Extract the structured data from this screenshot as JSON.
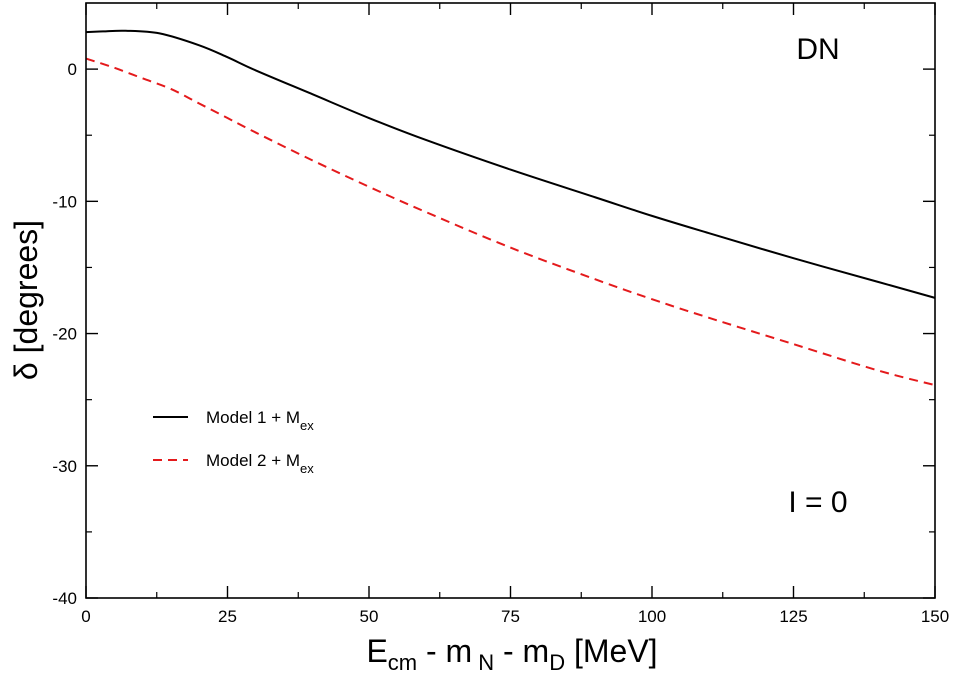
{
  "chart_data": {
    "type": "line",
    "xlim": [
      0,
      150
    ],
    "ylim": [
      -40,
      5
    ],
    "x_ticks": [
      0,
      25,
      50,
      75,
      100,
      125,
      150
    ],
    "y_ticks": [
      0,
      -10,
      -20,
      -30,
      -40
    ],
    "x_tick_labels": [
      "0",
      "25",
      "50",
      "75",
      "100",
      "125",
      "150"
    ],
    "y_tick_labels": [
      "0",
      "-10",
      "-20",
      "-30",
      "-40"
    ],
    "xlabel": {
      "main": "E",
      "sub1": "cm",
      "mid": " - m",
      "sub2": "N",
      "mid2": " - m",
      "sub3": "D",
      "tail": " [MeV]"
    },
    "ylabel": "δ [degrees]",
    "annotations": {
      "top_right": "DN",
      "bottom_right": "I = 0"
    },
    "legend_position": "center-left",
    "grid": false,
    "series": [
      {
        "name": "Model 1 + M",
        "name_sub": "ex",
        "color": "#000000",
        "dash": "solid",
        "points": [
          [
            0,
            2.8
          ],
          [
            3,
            2.85
          ],
          [
            7,
            2.9
          ],
          [
            13,
            2.7
          ],
          [
            20,
            1.8
          ],
          [
            25,
            0.9
          ],
          [
            30,
            -0.1
          ],
          [
            40,
            -1.9
          ],
          [
            50,
            -3.7
          ],
          [
            60,
            -5.35
          ],
          [
            75,
            -7.6
          ],
          [
            90,
            -9.7
          ],
          [
            100,
            -11.1
          ],
          [
            110,
            -12.4
          ],
          [
            125,
            -14.3
          ],
          [
            140,
            -16.1
          ],
          [
            150,
            -17.3
          ]
        ]
      },
      {
        "name": "Model 2 + M",
        "name_sub": "ex",
        "color": "#e41a1c",
        "dash": "dashed",
        "points": [
          [
            0,
            0.8
          ],
          [
            5,
            0.1
          ],
          [
            10,
            -0.7
          ],
          [
            15,
            -1.5
          ],
          [
            20,
            -2.6
          ],
          [
            25,
            -3.7
          ],
          [
            30,
            -4.8
          ],
          [
            40,
            -6.9
          ],
          [
            50,
            -8.9
          ],
          [
            60,
            -10.8
          ],
          [
            75,
            -13.5
          ],
          [
            90,
            -15.9
          ],
          [
            100,
            -17.4
          ],
          [
            110,
            -18.8
          ],
          [
            125,
            -20.8
          ],
          [
            140,
            -22.8
          ],
          [
            150,
            -23.9
          ]
        ]
      }
    ]
  }
}
